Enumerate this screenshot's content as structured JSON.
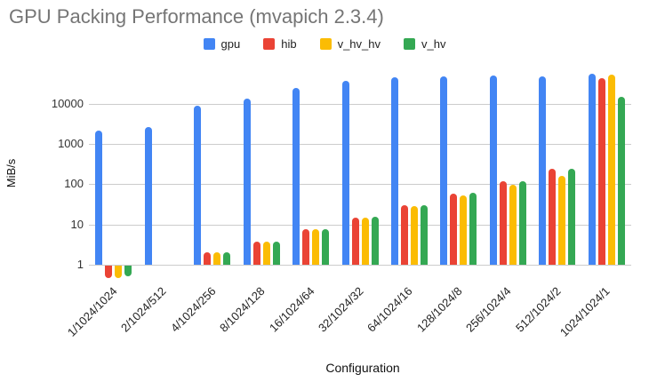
{
  "title": "GPU Packing Performance (mvapich 2.3.4)",
  "axes": {
    "x_title": "Configuration",
    "y_title": "MiB/s"
  },
  "chart_data": {
    "type": "bar",
    "title": "GPU Packing Performance (mvapich 2.3.4)",
    "xlabel": "Configuration",
    "ylabel": "MiB/s",
    "y_scale": "log",
    "y_ticks": [
      1,
      10,
      100,
      1000,
      10000
    ],
    "ylim": [
      0.47,
      86000
    ],
    "grid": true,
    "legend_position": "top-center",
    "categories": [
      "1/1024/1024",
      "2/1024/512",
      "4/1024/256",
      "8/1024/128",
      "16/1024/64",
      "32/1024/32",
      "64/1024/16",
      "128/1024/8",
      "256/1024/4",
      "512/1024/2",
      "1024/1024/1"
    ],
    "series": [
      {
        "name": "gpu",
        "color": "#4285F4",
        "values": [
          2200,
          2700,
          8800,
          13500,
          25000,
          38000,
          46000,
          49000,
          51000,
          47000,
          55000
        ]
      },
      {
        "name": "hib",
        "color": "#EA4335",
        "values": [
          0.5,
          null,
          2.0,
          3.8,
          7.7,
          15.0,
          30,
          59,
          120,
          245,
          44000
        ]
      },
      {
        "name": "v_hv_hv",
        "color": "#FBBC04",
        "values": [
          0.5,
          null,
          2.0,
          3.7,
          7.6,
          14.5,
          28,
          52,
          97,
          165,
          52000
        ]
      },
      {
        "name": "v_hv",
        "color": "#34A853",
        "values": [
          0.55,
          null,
          2.0,
          3.8,
          7.8,
          15.5,
          30,
          60,
          120,
          240,
          14500
        ]
      }
    ],
    "colors": {
      "gridline": "#cccccc",
      "title_text": "#757575",
      "tick_text": "#333333"
    }
  }
}
